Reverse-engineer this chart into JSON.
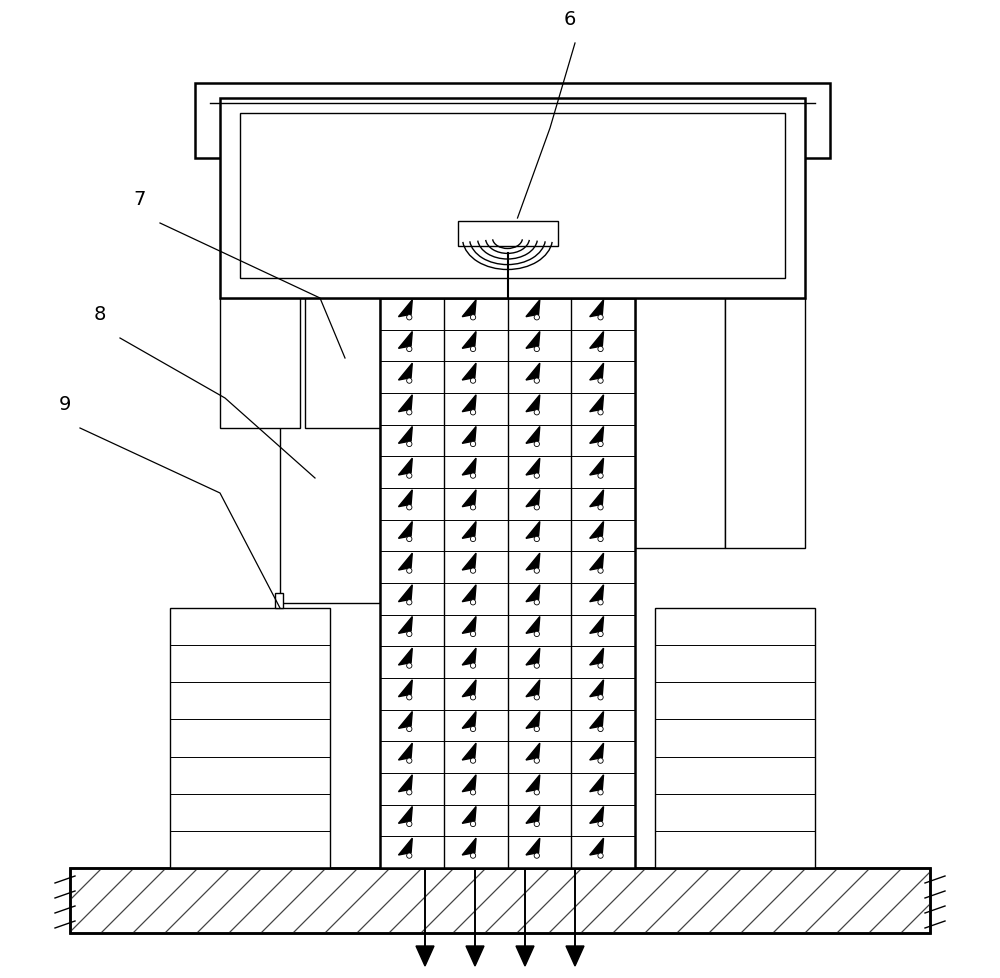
{
  "bg_color": "#ffffff",
  "line_color": "#000000",
  "lw": 1.0,
  "tlw": 1.8,
  "grid_rows": 18,
  "grid_cols": 4,
  "label_6": "6",
  "label_7": "7",
  "label_8": "8",
  "label_9": "9",
  "label_fs": 14
}
